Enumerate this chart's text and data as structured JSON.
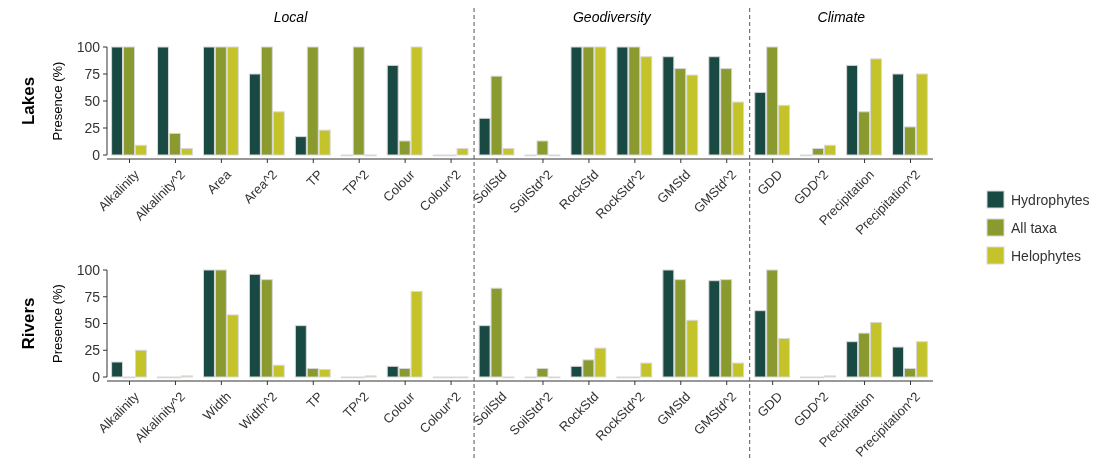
{
  "chart_data": [
    {
      "type": "bar",
      "title": "Lakes",
      "ylabel": "Presence (%)",
      "categories": [
        "Alkalinity",
        "Alkalinity^2",
        "Area",
        "Area^2",
        "TP",
        "TP^2",
        "Colour",
        "Colour^2",
        "SoilStd",
        "SoilStd^2",
        "RockStd",
        "RockStd^2",
        "GMStd",
        "GMStd^2",
        "GDD",
        "GDD^2",
        "Precipitation",
        "Precipitation^2"
      ],
      "series": [
        {
          "color": "#184a43",
          "values": [
            100,
            100,
            100,
            75,
            17,
            0,
            83,
            0,
            34,
            0,
            100,
            100,
            91,
            91,
            58,
            0,
            83,
            75
          ]
        },
        {
          "color": "#8a9a2e",
          "values": [
            100,
            20,
            100,
            100,
            100,
            100,
            13,
            0,
            73,
            13,
            100,
            100,
            80,
            80,
            100,
            6,
            40,
            26
          ]
        },
        {
          "color": "#c4c42a",
          "values": [
            9,
            6,
            100,
            40,
            23,
            0,
            100,
            6,
            6,
            0,
            100,
            91,
            74,
            49,
            46,
            9,
            89,
            75
          ]
        }
      ],
      "ylim": [
        0,
        100
      ],
      "yticks": [
        0,
        25,
        50,
        75,
        100
      ],
      "annotations": [
        "Local",
        "Geodiversity",
        "Climate"
      ]
    },
    {
      "type": "bar",
      "title": "Rivers",
      "ylabel": "Presence (%)",
      "categories": [
        "Alkalinity",
        "Alkalinity^2",
        "Width",
        "Width^2",
        "TP",
        "TP^2",
        "Colour",
        "Colour^2",
        "SoilStd",
        "SoilStd^2",
        "RockStd",
        "RockStd^2",
        "GMStd",
        "GMStd^2",
        "GDD",
        "GDD^2",
        "Precipitation",
        "Precipitation^2"
      ],
      "series": [
        {
          "name": "Hydrophytes",
          "color": "#184a43",
          "values": [
            14,
            0,
            100,
            96,
            48,
            0,
            10,
            0,
            48,
            0,
            10,
            0,
            100,
            90,
            62,
            0,
            33,
            28
          ]
        },
        {
          "name": "All taxa",
          "color": "#8a9a2e",
          "values": [
            0,
            0,
            100,
            91,
            8,
            0,
            8,
            0,
            83,
            8,
            16,
            0,
            91,
            91,
            100,
            0,
            41,
            8
          ]
        },
        {
          "name": "Helophytes",
          "color": "#c4c42a",
          "values": [
            25,
            1,
            58,
            11,
            7,
            1,
            80,
            0,
            0,
            0,
            27,
            13,
            53,
            13,
            36,
            1,
            51,
            33
          ]
        }
      ],
      "ylim": [
        0,
        100
      ],
      "yticks": [
        0,
        25,
        50,
        75,
        100
      ],
      "legend": "right"
    }
  ]
}
